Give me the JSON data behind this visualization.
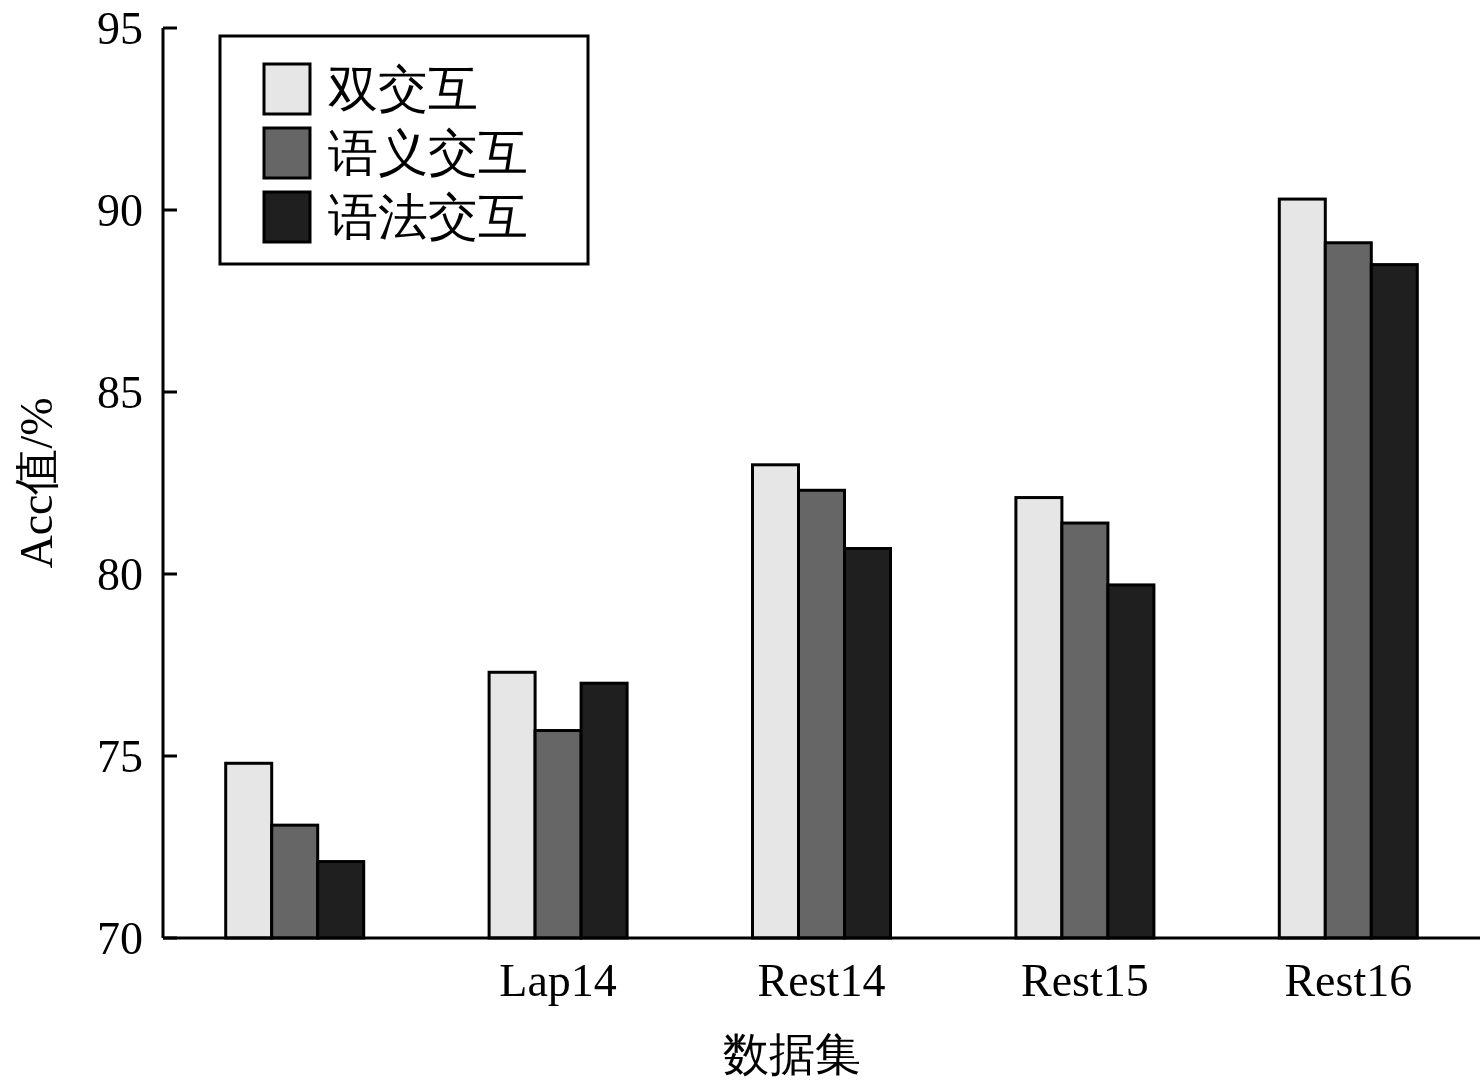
{
  "chart_data": {
    "type": "bar",
    "xlabel": "数据集",
    "ylabel": "Acc值/%",
    "categories": [
      null,
      "Lap14",
      "Rest14",
      "Rest15",
      "Rest16"
    ],
    "series": [
      {
        "name": "双交互",
        "color": "#e6e6e6",
        "values": [
          74.8,
          77.3,
          83.0,
          82.1,
          90.3
        ]
      },
      {
        "name": "语义交互",
        "color": "#666666",
        "values": [
          73.1,
          75.7,
          82.3,
          81.4,
          89.1
        ]
      },
      {
        "name": "语法交互",
        "color": "#1f1f1f",
        "values": [
          72.1,
          77.0,
          80.7,
          79.7,
          88.5
        ]
      }
    ],
    "ylim": [
      70,
      95
    ],
    "yticks": [
      70,
      75,
      80,
      85,
      90,
      95
    ],
    "legend": "top left",
    "grid": false
  }
}
